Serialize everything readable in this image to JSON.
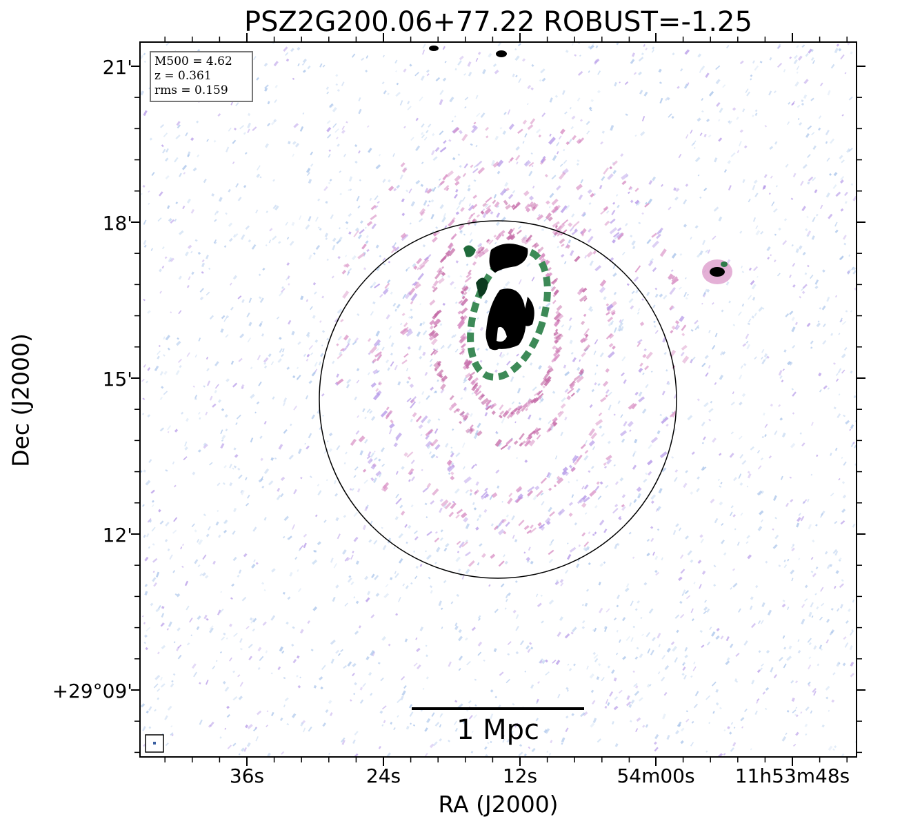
{
  "title": "PSZ2G200.06+77.22 ROBUST=-1.25",
  "axes": {
    "xlabel": "RA (J2000)",
    "ylabel": "Dec (J2000)",
    "xticks": [
      "36s",
      "24s",
      "12s",
      "54m00s",
      "11h53m48s"
    ],
    "yticks": [
      "21'",
      "18'",
      "15'",
      "12'",
      "+29°09'"
    ]
  },
  "info": {
    "m500": "M500 = 4.62",
    "z": "z = 0.361",
    "rms": "rms = 0.159"
  },
  "scalebar": {
    "label": "1 Mpc"
  },
  "colors": {
    "noise_blue": "#a9c4ea",
    "noise_violet": "#b79be8",
    "pink": "#d88fc4",
    "magenta": "#c46aa6",
    "green": "#2f7a4a",
    "core": "#000000"
  }
}
